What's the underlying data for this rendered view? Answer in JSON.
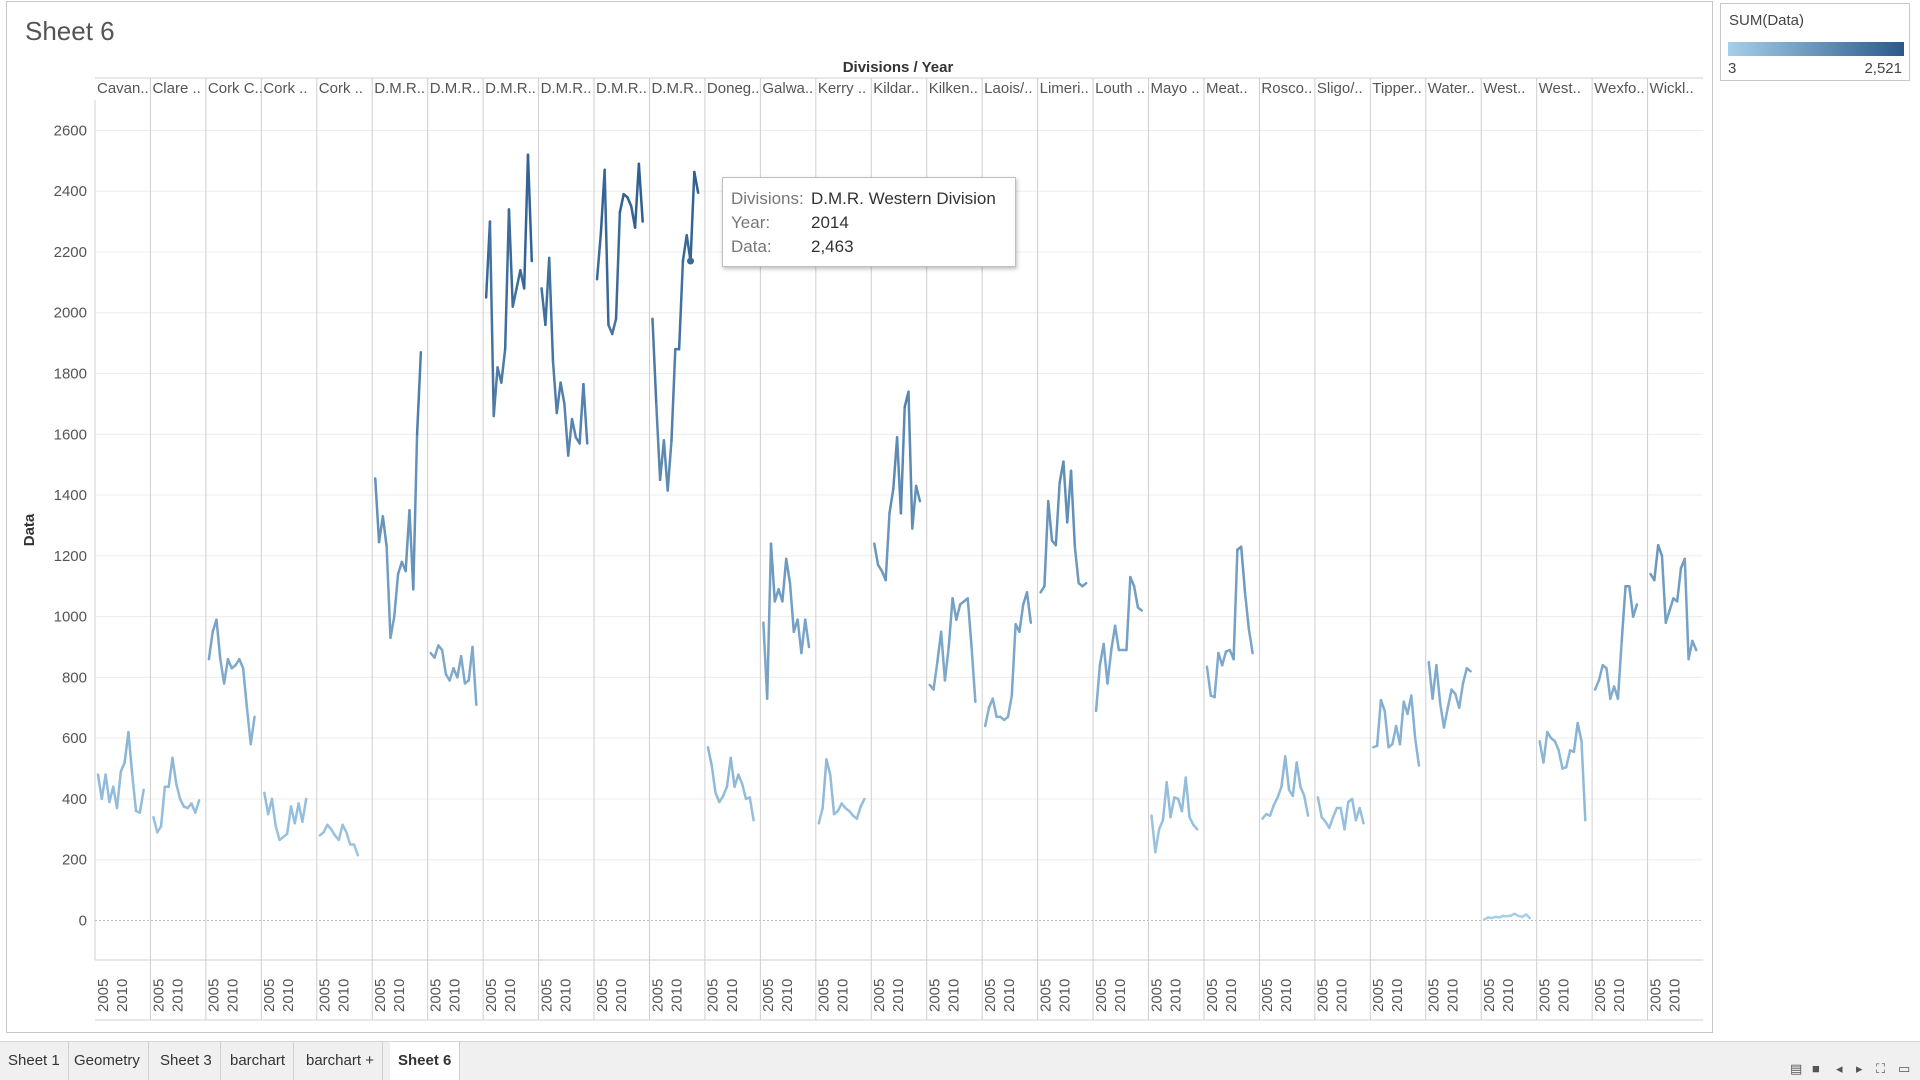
{
  "sheet_title": "Sheet 6",
  "legend": {
    "title": "SUM(Data)",
    "min_label": "3",
    "max_label": "2,521",
    "color_low": "#a6cfea",
    "color_high": "#2a5a8c"
  },
  "tooltip": {
    "rows": [
      {
        "label": "Divisions:",
        "value": "D.M.R. Western Division"
      },
      {
        "label": "Year:",
        "value": "2014"
      },
      {
        "label": "Data:",
        "value": "2,463"
      }
    ]
  },
  "tabs": [
    "Sheet 1",
    "Geometry",
    "Sheet 3",
    "barchart",
    "barchart +",
    "Sheet 6"
  ],
  "active_tab": "Sheet 6",
  "nav_controls": [
    {
      "name": "show-sheet-sorter-icon",
      "glyph": "▤"
    },
    {
      "name": "show-filmstrip-icon",
      "glyph": "■"
    },
    {
      "name": "prev-sheet-icon",
      "glyph": "◂"
    },
    {
      "name": "next-sheet-icon",
      "glyph": "▸"
    },
    {
      "name": "fit-icon",
      "glyph": "⛶"
    },
    {
      "name": "presentation-mode-icon",
      "glyph": "▭"
    }
  ],
  "chart_data": {
    "type": "line",
    "title": "Divisions / Year",
    "xlabel": "Divisions / Year",
    "ylabel": "Data",
    "ylim": [
      -130,
      2700
    ],
    "yticks": [
      0,
      200,
      400,
      600,
      800,
      1000,
      1200,
      1400,
      1600,
      1800,
      2000,
      2200,
      2400,
      2600
    ],
    "year_ticks": [
      "2005",
      "2010"
    ],
    "color_scale": {
      "min": 3,
      "max": 2521
    },
    "highlight": {
      "division": "D.M.R. Western Division",
      "year": 2014,
      "value": 2463
    },
    "divisions": [
      {
        "label": "Cavan..",
        "start_year": 2004,
        "values": [
          480,
          400,
          480,
          390,
          440,
          370,
          490,
          520,
          620,
          480,
          360,
          355,
          430
        ]
      },
      {
        "label": "Clare ..",
        "start_year": 2004,
        "values": [
          340,
          290,
          310,
          440,
          440,
          535,
          450,
          400,
          375,
          370,
          385,
          355,
          395
        ]
      },
      {
        "label": "Cork C..",
        "start_year": 2004,
        "values": [
          860,
          950,
          990,
          860,
          780,
          860,
          830,
          840,
          860,
          830,
          700,
          580,
          670
        ]
      },
      {
        "label": "Cork ..",
        "start_year": 2004,
        "values": [
          420,
          350,
          400,
          310,
          265,
          275,
          285,
          375,
          320,
          385,
          325,
          400
        ]
      },
      {
        "label": "Cork ..",
        "start_year": 2004,
        "values": [
          280,
          290,
          315,
          300,
          280,
          265,
          315,
          290,
          250,
          250,
          215
        ]
      },
      {
        "label": "D.M.R..",
        "start_year": 2004,
        "values": [
          1455,
          1245,
          1330,
          1230,
          930,
          1000,
          1140,
          1180,
          1150,
          1350,
          1090,
          1600,
          1870
        ]
      },
      {
        "label": "D.M.R..",
        "start_year": 2004,
        "values": [
          880,
          865,
          905,
          890,
          810,
          790,
          830,
          800,
          870,
          780,
          790,
          900,
          710
        ]
      },
      {
        "label": "D.M.R..",
        "start_year": 2004,
        "values": [
          2050,
          2300,
          1660,
          1820,
          1770,
          1880,
          2340,
          2020,
          2080,
          2140,
          2080,
          2520,
          2170
        ]
      },
      {
        "label": "D.M.R..",
        "start_year": 2004,
        "values": [
          2080,
          1960,
          2180,
          1840,
          1670,
          1770,
          1700,
          1530,
          1650,
          1590,
          1570,
          1765,
          1570
        ]
      },
      {
        "label": "D.M.R..",
        "start_year": 2004,
        "values": [
          2110,
          2260,
          2470,
          1960,
          1930,
          1980,
          2330,
          2390,
          2380,
          2350,
          2280,
          2490,
          2300
        ]
      },
      {
        "label": "D.M.R..",
        "start_year": 2004,
        "values": [
          1980,
          1700,
          1450,
          1580,
          1415,
          1580,
          1880,
          1880,
          2170,
          2255,
          2170,
          2463,
          2395
        ]
      },
      {
        "label": "Doneg..",
        "start_year": 2004,
        "values": [
          570,
          510,
          420,
          390,
          410,
          440,
          535,
          440,
          480,
          450,
          400,
          405,
          330
        ]
      },
      {
        "label": "Galwa..",
        "start_year": 2004,
        "values": [
          980,
          730,
          1240,
          1050,
          1090,
          1050,
          1190,
          1110,
          950,
          990,
          880,
          990,
          900
        ]
      },
      {
        "label": "Kerry ..",
        "start_year": 2004,
        "values": [
          320,
          370,
          530,
          480,
          350,
          360,
          385,
          370,
          360,
          345,
          335,
          375,
          400
        ]
      },
      {
        "label": "Kildar..",
        "start_year": 2004,
        "values": [
          1240,
          1170,
          1150,
          1120,
          1340,
          1420,
          1590,
          1340,
          1690,
          1740,
          1290,
          1430,
          1380
        ]
      },
      {
        "label": "Kilken..",
        "start_year": 2004,
        "values": [
          775,
          760,
          850,
          950,
          790,
          900,
          1060,
          990,
          1040,
          1050,
          1060,
          900,
          720
        ]
      },
      {
        "label": "Laois/..",
        "start_year": 2004,
        "values": [
          640,
          700,
          730,
          670,
          670,
          660,
          670,
          740,
          975,
          950,
          1040,
          1080,
          980
        ]
      },
      {
        "label": "Limeri..",
        "start_year": 2004,
        "values": [
          1080,
          1100,
          1380,
          1250,
          1235,
          1440,
          1510,
          1310,
          1480,
          1230,
          1110,
          1100,
          1110
        ]
      },
      {
        "label": "Louth ..",
        "start_year": 2004,
        "values": [
          690,
          840,
          910,
          780,
          890,
          970,
          890,
          890,
          890,
          1130,
          1100,
          1030,
          1020
        ]
      },
      {
        "label": "Mayo ..",
        "start_year": 2004,
        "values": [
          345,
          225,
          300,
          330,
          455,
          340,
          405,
          400,
          360,
          470,
          340,
          315,
          300
        ]
      },
      {
        "label": "Meat..",
        "start_year": 2004,
        "values": [
          835,
          740,
          735,
          880,
          840,
          885,
          890,
          860,
          1220,
          1230,
          1080,
          960,
          880
        ]
      },
      {
        "label": "Rosco..",
        "start_year": 2004,
        "values": [
          335,
          350,
          345,
          380,
          405,
          440,
          540,
          430,
          410,
          520,
          440,
          410,
          345
        ]
      },
      {
        "label": "Sligo/..",
        "start_year": 2004,
        "values": [
          405,
          340,
          325,
          305,
          340,
          370,
          370,
          300,
          390,
          400,
          330,
          370,
          320
        ]
      },
      {
        "label": "Tipper..",
        "start_year": 2004,
        "values": [
          570,
          575,
          725,
          690,
          570,
          580,
          640,
          580,
          720,
          680,
          740,
          600,
          510
        ]
      },
      {
        "label": "Water..",
        "start_year": 2004,
        "values": [
          850,
          730,
          840,
          715,
          635,
          700,
          760,
          745,
          700,
          780,
          830,
          820
        ]
      },
      {
        "label": "West..",
        "start_year": 2004,
        "values": [
          3,
          10,
          8,
          12,
          10,
          15,
          14,
          16,
          22,
          15,
          12,
          20,
          8
        ]
      },
      {
        "label": "West..",
        "start_year": 2004,
        "values": [
          590,
          520,
          620,
          600,
          590,
          560,
          500,
          505,
          560,
          555,
          650,
          590,
          330
        ]
      },
      {
        "label": "Wexfo..",
        "start_year": 2004,
        "values": [
          760,
          790,
          840,
          830,
          730,
          770,
          730,
          920,
          1100,
          1100,
          1000,
          1040
        ]
      },
      {
        "label": "Wickl..",
        "start_year": 2004,
        "values": [
          1140,
          1120,
          1235,
          1200,
          980,
          1020,
          1060,
          1050,
          1160,
          1190,
          860,
          920,
          890
        ]
      }
    ]
  }
}
